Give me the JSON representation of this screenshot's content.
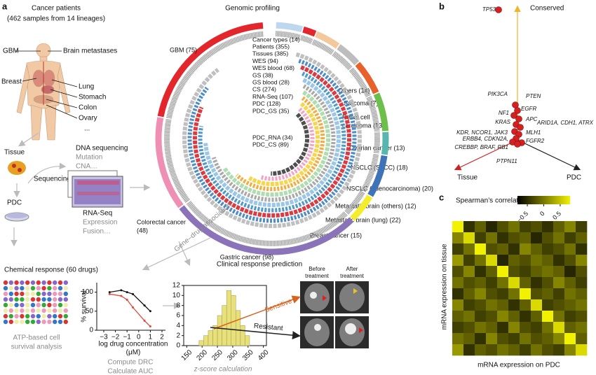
{
  "panels": {
    "a": {
      "label": "a",
      "patients": {
        "title": "Cancer patients",
        "subtitle": "(462 samples from 14 lineages)"
      },
      "body_labels": {
        "gbm": "GBM",
        "brain_mets": "Brain metastases",
        "breast": "Breast",
        "lung": "Lung",
        "stomach": "Stomach",
        "colon": "Colon",
        "ovary": "Ovary",
        "more": "..."
      },
      "flow": {
        "tissue": "Tissue",
        "pdc": "PDC",
        "sequencing": "Sequencing",
        "dna": "DNA sequencing",
        "dna_items": [
          "Mutation",
          "CNA…"
        ],
        "rna": "RNA-Seq",
        "rna_items": [
          "Expression",
          "Fusion…"
        ]
      },
      "genomic": {
        "title": "Genomic profiling",
        "tracks": [
          {
            "label": "Cancer types (14)",
            "color": "#e02020"
          },
          {
            "label": "Patients (355)",
            "color": "#9a9a9a"
          },
          {
            "label": "Tissues (385)",
            "color": "#b8b8b8"
          },
          {
            "label": "WES (94)",
            "color": "#3a7fc0"
          },
          {
            "label": "WES blood (68)",
            "color": "#d7262b"
          },
          {
            "label": "GS (38)",
            "color": "#3e8ec4"
          },
          {
            "label": "GS blood (28)",
            "color": "#8fc0e6"
          },
          {
            "label": "CS (274)",
            "color": "#a0a0a0"
          },
          {
            "label": "RNA-Seq (107)",
            "color": "#a6d9a6"
          },
          {
            "label": "PDC (128)",
            "color": "#f2a32c"
          },
          {
            "label": "PDC_GS (35)",
            "color": "#f6d23a"
          },
          {
            "label": "PDC_RNA (34)",
            "color": "#f19ac0"
          },
          {
            "label": "PDC_CS (89)",
            "color": "#3c3c3c"
          }
        ],
        "lineages": [
          {
            "label": [
              "Others (14)"
            ],
            "n": 14,
            "color": "#bcd7ee"
          },
          {
            "label": [
              "Sarcoma (7)"
            ],
            "n": 7,
            "color": "#e3262c"
          },
          {
            "label": [
              "Renal cell",
              "carcinoma (13)"
            ],
            "n": 13,
            "color": "#f3c89a"
          },
          {
            "label": [
              "Ovarian cancer (13)"
            ],
            "n": 13,
            "color": "#bdbdbd"
          },
          {
            "label": [
              "NSCLC (SqCC) (18)"
            ],
            "n": 18,
            "color": "#e8602c"
          },
          {
            "label": [
              "NSCLC (adenocarcinoma) (20)"
            ],
            "n": 20,
            "color": "#6cbf4a"
          },
          {
            "label": [
              "Metastatic brain (others) (12)"
            ],
            "n": 12,
            "color": "#57b7ae"
          },
          {
            "label": [
              "Metastatic brain (lung) (22)"
            ],
            "n": 22,
            "color": "#3f73b8"
          },
          {
            "label": [
              "Breast cancer (15)"
            ],
            "n": 15,
            "color": "#f4ee2a"
          },
          {
            "label": [
              "Gastric cancer (98)"
            ],
            "n": 98,
            "color": "#8a73b8"
          },
          {
            "label": [
              "Colorectal cancer",
              "(48)"
            ],
            "n": 48,
            "color": "#ef8fb3"
          },
          {
            "label": [
              "GBM (75)"
            ],
            "n": 75,
            "color": "#e3262c"
          }
        ]
      },
      "association": "Gene–drug association",
      "chemical": {
        "title": "Chemical response (60 drugs)",
        "assay": [
          "ATP-based cell",
          "survival analysis"
        ],
        "caption": [
          "Compute DRC",
          "Calculate AUC"
        ],
        "drc": {
          "type": "scatter",
          "ylabel": "% survival",
          "xlabel": [
            "log drug concentration",
            "(μM)"
          ],
          "xlim": [
            -3.6,
            2.3
          ],
          "ylim": [
            0,
            125
          ],
          "xticks": [
            {
              "value": -3,
              "label": "−3"
            },
            {
              "value": -2,
              "label": "−2"
            },
            {
              "value": -1,
              "label": "−1"
            },
            0,
            1,
            2
          ],
          "yticks": [
            0,
            50,
            100
          ],
          "x": [
            -2.5,
            -1.5,
            -1,
            -0.5,
            0.5,
            1
          ],
          "series": [
            {
              "color": "#111111",
              "values": [
                100,
                105,
                100,
                95,
                65,
                50
              ]
            },
            {
              "color": "#e0483c",
              "values": [
                95,
                90,
                80,
                60,
                25,
                10
              ]
            }
          ]
        }
      },
      "clinical": {
        "title": "Clinical response prediction",
        "xlabel": "z-score calculation",
        "before": [
          "Before",
          "treatment"
        ],
        "after": [
          "After",
          "treatment"
        ],
        "sensitive": "Sensitive",
        "resistant": "Resistant",
        "histogram": {
          "type": "histogram",
          "color": "#e8e07a",
          "xlim": [
            140,
            410
          ],
          "ylim": [
            0,
            12
          ],
          "xticks": [
            150,
            200,
            250,
            300,
            350,
            400
          ],
          "yticks": [
            0,
            2,
            4,
            6,
            8,
            10,
            12
          ],
          "bins": [
            190,
            205,
            220,
            235,
            250,
            265,
            280,
            295,
            310,
            325,
            340,
            355
          ],
          "values": [
            1,
            2,
            3,
            4,
            6,
            8,
            11,
            10,
            7,
            4,
            2
          ]
        }
      }
    },
    "b": {
      "label": "b",
      "axes": {
        "conserved": "Conserved",
        "tissue": "Tissue",
        "pdc": "PDC"
      },
      "genes": [
        "TP53",
        "PIK3CA",
        "PTEN",
        "EGFR",
        "NF1",
        "APC",
        "KRAS",
        "ARID1A, CDH1, ATRX",
        "MLH1",
        "KDR, NCOR1, JAK3",
        "ERBB4, CDKN2A,",
        "CREBBP, BRAF, RB1",
        "FGFR2",
        "PTPN11"
      ]
    },
    "c": {
      "label": "c",
      "colorbar_label": "Spearman’s correlation",
      "xlabel": "mRNA expression on PDC",
      "ylabel": "mRNA expression on tissue",
      "clim": [
        -0.8,
        0.8
      ],
      "colorbar_ticks": [
        {
          "value": -0.5,
          "label": "−0.5"
        },
        0,
        0.5
      ],
      "values": [
        [
          0.8,
          -0.2,
          0.1,
          -0.3,
          0.0,
          0.2,
          -0.1,
          0.0,
          -0.2,
          0.1,
          0.3,
          -0.1
        ],
        [
          0.3,
          0.7,
          -0.1,
          0.2,
          -0.2,
          0.0,
          0.1,
          -0.3,
          0.0,
          0.2,
          -0.1,
          0.1
        ],
        [
          -0.1,
          0.2,
          0.8,
          0.0,
          0.1,
          -0.2,
          0.3,
          0.1,
          -0.1,
          0.0,
          0.2,
          -0.2
        ],
        [
          0.4,
          -0.1,
          0.2,
          0.7,
          -0.3,
          0.1,
          0.0,
          0.2,
          0.1,
          -0.2,
          0.0,
          0.3
        ],
        [
          0.0,
          0.3,
          -0.2,
          0.1,
          0.8,
          0.0,
          -0.1,
          0.1,
          0.2,
          0.1,
          -0.3,
          0.0
        ],
        [
          0.2,
          0.0,
          0.1,
          -0.1,
          0.2,
          0.7,
          0.1,
          -0.2,
          0.0,
          0.3,
          0.1,
          -0.1
        ],
        [
          -0.2,
          0.1,
          0.3,
          0.0,
          -0.1,
          0.2,
          0.8,
          0.0,
          0.1,
          -0.1,
          0.2,
          0.1
        ],
        [
          0.3,
          -0.1,
          0.0,
          0.2,
          0.1,
          -0.2,
          0.1,
          0.7,
          -0.1,
          0.0,
          0.1,
          0.2
        ],
        [
          0.1,
          0.2,
          -0.1,
          0.0,
          0.3,
          0.1,
          -0.2,
          0.1,
          0.8,
          0.2,
          -0.1,
          0.0
        ],
        [
          -0.1,
          0.0,
          0.2,
          0.1,
          -0.2,
          0.3,
          0.0,
          -0.1,
          0.2,
          0.7,
          0.1,
          0.2
        ],
        [
          0.2,
          0.1,
          -0.2,
          0.3,
          0.0,
          -0.1,
          0.2,
          0.0,
          0.1,
          0.3,
          0.8,
          0.1
        ],
        [
          0.4,
          -0.2,
          0.1,
          0.0,
          0.2,
          0.1,
          -0.1,
          0.2,
          0.0,
          -0.1,
          0.3,
          0.7
        ]
      ]
    }
  }
}
